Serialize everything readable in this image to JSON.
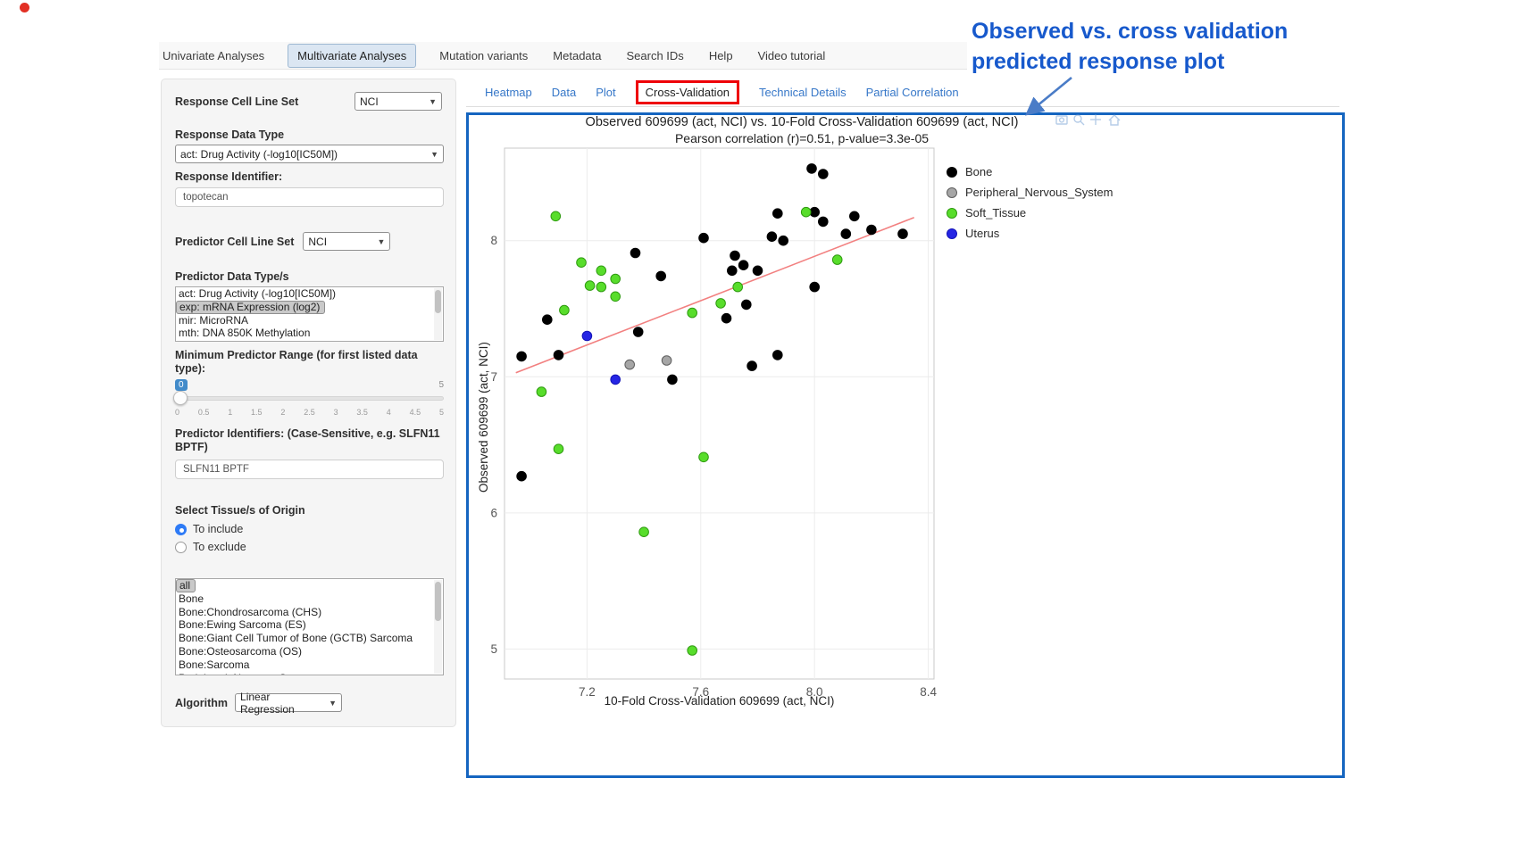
{
  "nav": {
    "tabs": [
      {
        "label": "Univariate Analyses",
        "active": false
      },
      {
        "label": "Multivariate Analyses",
        "active": true
      },
      {
        "label": "Mutation variants",
        "active": false
      },
      {
        "label": "Metadata",
        "active": false
      },
      {
        "label": "Search IDs",
        "active": false
      },
      {
        "label": "Help",
        "active": false
      },
      {
        "label": "Video tutorial",
        "active": false
      }
    ]
  },
  "sidebar": {
    "response_cell_line_set": {
      "label": "Response Cell Line Set",
      "value": "NCI"
    },
    "response_data_type": {
      "label": "Response Data Type",
      "value": "act: Drug Activity (-log10[IC50M])"
    },
    "response_identifier": {
      "label": "Response Identifier:",
      "value": "topotecan"
    },
    "predictor_cell_line_set": {
      "label": "Predictor Cell Line Set",
      "value": "NCI"
    },
    "predictor_data_types": {
      "label": "Predictor Data Type/s",
      "options": [
        "act: Drug Activity (-log10[IC50M])",
        "exp: mRNA Expression (log2)",
        "mir: MicroRNA",
        "mth: DNA 850K Methylation"
      ],
      "selected": "exp: mRNA Expression (log2)"
    },
    "min_predictor_range": {
      "label": "Minimum Predictor Range (for first listed data type):",
      "value": "0",
      "max_label": "5",
      "ticks": [
        "0",
        "0.5",
        "1",
        "1.5",
        "2",
        "2.5",
        "3",
        "3.5",
        "4",
        "4.5",
        "5"
      ]
    },
    "predictor_identifiers": {
      "label": "Predictor Identifiers: (Case-Sensitive, e.g. SLFN11 BPTF)",
      "value": "SLFN11 BPTF"
    },
    "tissue_origin": {
      "label": "Select Tissue/s of Origin",
      "options": [
        {
          "label": "To include",
          "selected": true
        },
        {
          "label": "To exclude",
          "selected": false
        }
      ]
    },
    "tissue_list": {
      "options": [
        "all",
        "Bone",
        "Bone:Chondrosarcoma (CHS)",
        "Bone:Ewing Sarcoma (ES)",
        "Bone:Giant Cell Tumor of Bone (GCTB) Sarcoma",
        "Bone:Osteosarcoma (OS)",
        "Bone:Sarcoma",
        "Peripheral_Nervous_System"
      ],
      "selected": "all"
    },
    "algorithm": {
      "label": "Algorithm",
      "value": "Linear Regression"
    }
  },
  "content": {
    "tabs": [
      {
        "label": "Heatmap",
        "active": false,
        "highlighted": false
      },
      {
        "label": "Data",
        "active": false,
        "highlighted": false
      },
      {
        "label": "Plot",
        "active": false,
        "highlighted": false
      },
      {
        "label": "Cross-Validation",
        "active": true,
        "highlighted": true
      },
      {
        "label": "Technical Details",
        "active": false,
        "highlighted": false
      },
      {
        "label": "Partial Correlation",
        "active": false,
        "highlighted": false
      }
    ]
  },
  "annotation": {
    "text_line1": "Observed vs. cross validation",
    "text_line2": "predicted response plot",
    "color": "#1759cc"
  },
  "chart_data": {
    "type": "scatter",
    "title": "Observed 609699 (act, NCI) vs. 10-Fold Cross-Validation 609699 (act, NCI)",
    "subtitle": "Pearson correlation (r)=0.51, p-value=3.3e-05",
    "xlabel": "10-Fold Cross-Validation 609699 (act, NCI)",
    "ylabel": "Observed 609699 (act, NCI)",
    "xlim": [
      6.91,
      8.42
    ],
    "ylim": [
      4.78,
      8.68
    ],
    "xticks": [
      7.2,
      7.6,
      8.0,
      8.4
    ],
    "xtick_labels": [
      "7.2",
      "7.6",
      "8.0",
      "8.4"
    ],
    "yticks": [
      5,
      6,
      7,
      8
    ],
    "ytick_labels": [
      "5",
      "6",
      "7",
      "8"
    ],
    "grid": true,
    "legend_position": "right",
    "pearson_r": 0.51,
    "p_value": "3.3e-05",
    "series": [
      {
        "name": "Bone",
        "fill": "#000000",
        "stroke": "#000000",
        "points": [
          [
            7.99,
            8.53
          ],
          [
            8.03,
            8.49
          ],
          [
            7.87,
            8.2
          ],
          [
            8.0,
            8.21
          ],
          [
            8.03,
            8.14
          ],
          [
            8.14,
            8.18
          ],
          [
            8.2,
            8.08
          ],
          [
            8.31,
            8.05
          ],
          [
            8.11,
            8.05
          ],
          [
            7.85,
            8.03
          ],
          [
            7.89,
            8.0
          ],
          [
            7.61,
            8.02
          ],
          [
            7.37,
            7.91
          ],
          [
            7.72,
            7.89
          ],
          [
            7.75,
            7.82
          ],
          [
            7.71,
            7.78
          ],
          [
            7.8,
            7.78
          ],
          [
            7.46,
            7.74
          ],
          [
            8.0,
            7.66
          ],
          [
            7.76,
            7.53
          ],
          [
            7.06,
            7.42
          ],
          [
            7.38,
            7.33
          ],
          [
            7.69,
            7.43
          ],
          [
            6.97,
            7.15
          ],
          [
            7.1,
            7.16
          ],
          [
            7.78,
            7.08
          ],
          [
            7.87,
            7.16
          ],
          [
            7.5,
            6.98
          ],
          [
            6.97,
            6.27
          ]
        ]
      },
      {
        "name": "Peripheral_Nervous_System",
        "fill": "#a6a6a6",
        "stroke": "#5e5e5e",
        "points": [
          [
            7.35,
            7.09
          ],
          [
            7.48,
            7.12
          ]
        ]
      },
      {
        "name": "Soft_Tissue",
        "fill": "#58dd2b",
        "stroke": "#2f9b10",
        "points": [
          [
            7.09,
            8.18
          ],
          [
            7.97,
            8.21
          ],
          [
            7.18,
            7.84
          ],
          [
            7.25,
            7.78
          ],
          [
            7.21,
            7.67
          ],
          [
            7.25,
            7.66
          ],
          [
            7.3,
            7.72
          ],
          [
            7.3,
            7.59
          ],
          [
            7.12,
            7.49
          ],
          [
            7.57,
            7.47
          ],
          [
            7.67,
            7.54
          ],
          [
            7.73,
            7.66
          ],
          [
            8.08,
            7.86
          ],
          [
            7.04,
            6.89
          ],
          [
            7.1,
            6.47
          ],
          [
            7.61,
            6.41
          ],
          [
            7.4,
            5.86
          ],
          [
            7.57,
            4.99
          ]
        ]
      },
      {
        "name": "Uterus",
        "fill": "#2525e4",
        "stroke": "#1414b8",
        "points": [
          [
            7.2,
            7.3
          ],
          [
            7.3,
            6.98
          ]
        ]
      }
    ],
    "regression_line": {
      "x": [
        6.95,
        8.35
      ],
      "y": [
        7.03,
        8.17
      ],
      "color": "#f28080"
    }
  }
}
